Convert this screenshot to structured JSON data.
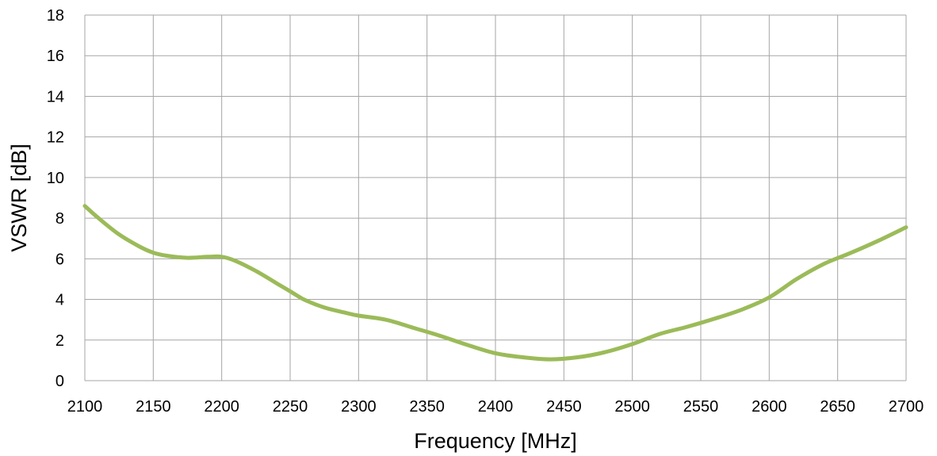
{
  "chart_data": {
    "type": "line",
    "title": "",
    "xlabel": "Frequency [MHz]",
    "ylabel": "VSWR [dB]",
    "xlim": [
      2100,
      2700
    ],
    "ylim": [
      0,
      18
    ],
    "xticks": [
      2100,
      2150,
      2200,
      2250,
      2300,
      2350,
      2400,
      2450,
      2500,
      2550,
      2600,
      2650,
      2700
    ],
    "yticks": [
      0,
      2,
      4,
      6,
      8,
      10,
      12,
      14,
      16,
      18
    ],
    "grid": true,
    "legend": "none",
    "series": [
      {
        "color": "#9bbb59",
        "x": [
          2100,
          2110,
          2125,
          2140,
          2150,
          2160,
          2175,
          2190,
          2200,
          2210,
          2225,
          2240,
          2250,
          2260,
          2275,
          2290,
          2300,
          2320,
          2340,
          2360,
          2380,
          2400,
          2420,
          2440,
          2460,
          2480,
          2500,
          2520,
          2540,
          2560,
          2580,
          2600,
          2620,
          2640,
          2660,
          2680,
          2700
        ],
        "y": [
          8.6,
          8.0,
          7.2,
          6.6,
          6.3,
          6.15,
          6.05,
          6.1,
          6.1,
          5.9,
          5.4,
          4.8,
          4.4,
          4.0,
          3.6,
          3.35,
          3.2,
          3.0,
          2.6,
          2.2,
          1.75,
          1.35,
          1.15,
          1.05,
          1.15,
          1.4,
          1.8,
          2.3,
          2.65,
          3.05,
          3.5,
          4.1,
          5.0,
          5.75,
          6.3,
          6.9,
          7.55
        ]
      }
    ]
  }
}
